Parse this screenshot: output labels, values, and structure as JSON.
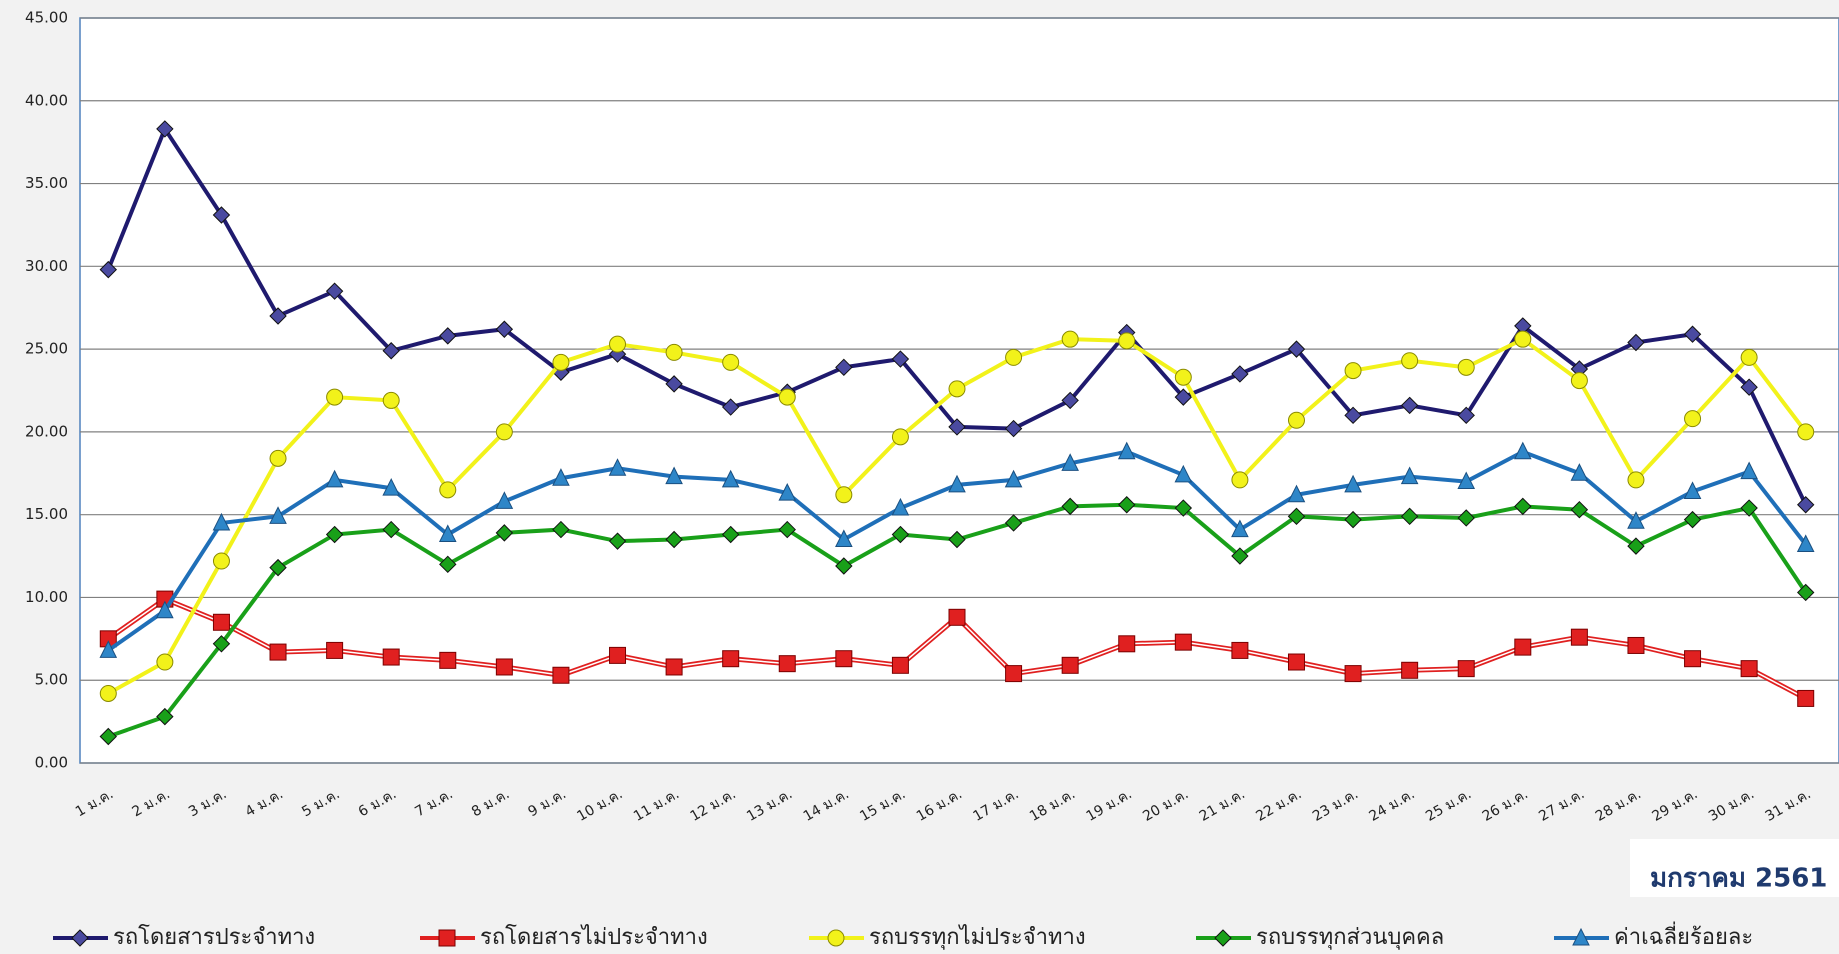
{
  "chart_data": {
    "type": "line",
    "categories": [
      "1 ม.ค.",
      "2 ม.ค.",
      "3 ม.ค.",
      "4 ม.ค.",
      "5 ม.ค.",
      "6 ม.ค.",
      "7 ม.ค.",
      "8 ม.ค.",
      "9 ม.ค.",
      "10 ม.ค.",
      "11 ม.ค.",
      "12 ม.ค.",
      "13 ม.ค.",
      "14 ม.ค.",
      "15 ม.ค.",
      "16 ม.ค.",
      "17 ม.ค.",
      "18 ม.ค.",
      "19 ม.ค.",
      "20 ม.ค.",
      "21 ม.ค.",
      "22 ม.ค.",
      "23 ม.ค.",
      "24 ม.ค.",
      "25 ม.ค.",
      "26 ม.ค.",
      "27 ม.ค.",
      "28 ม.ค.",
      "29 ม.ค.",
      "30 ม.ค.",
      "31 ม.ค."
    ],
    "series": [
      {
        "name": "รถโดยสารประจำทาง",
        "color": "#1f1a6e",
        "marker": "diamond",
        "values": [
          29.8,
          38.3,
          33.1,
          27.0,
          28.5,
          24.9,
          25.8,
          26.2,
          23.6,
          24.7,
          22.9,
          21.5,
          22.4,
          23.9,
          24.4,
          20.3,
          20.2,
          21.9,
          26.0,
          22.1,
          23.5,
          25.0,
          21.0,
          21.6,
          21.0,
          26.4,
          23.8,
          25.4,
          25.9,
          22.7,
          15.6
        ]
      },
      {
        "name": "รถโดยสารไม่ประจำทาง",
        "color": "#e02020",
        "marker": "square",
        "values": [
          7.5,
          9.9,
          8.5,
          6.7,
          6.8,
          6.4,
          6.2,
          5.8,
          5.3,
          6.5,
          5.8,
          6.3,
          6.0,
          6.3,
          5.9,
          8.8,
          5.4,
          5.9,
          7.2,
          7.3,
          6.8,
          6.1,
          5.4,
          5.6,
          5.7,
          7.0,
          7.6,
          7.1,
          6.3,
          5.7,
          3.9
        ]
      },
      {
        "name": "รถบรรทุกไม่ประจำทาง",
        "color": "#f2f21a",
        "marker": "circle",
        "values": [
          4.2,
          6.1,
          12.2,
          18.4,
          22.1,
          21.9,
          16.5,
          20.0,
          24.2,
          25.3,
          24.8,
          24.2,
          22.1,
          16.2,
          19.7,
          22.6,
          24.5,
          25.6,
          25.5,
          23.3,
          17.1,
          20.7,
          23.7,
          24.3,
          23.9,
          25.6,
          23.1,
          17.1,
          20.8,
          24.5,
          20.0
        ]
      },
      {
        "name": "รถบรรทุกส่วนบุคคล",
        "color": "#19a019",
        "marker": "diamond",
        "values": [
          1.6,
          2.8,
          7.2,
          11.8,
          13.8,
          14.1,
          12.0,
          13.9,
          14.1,
          13.4,
          13.5,
          13.8,
          14.1,
          11.9,
          13.8,
          13.5,
          14.5,
          15.5,
          15.6,
          15.4,
          12.5,
          14.9,
          14.7,
          14.9,
          14.8,
          15.5,
          15.3,
          13.1,
          14.7,
          15.4,
          10.3
        ]
      },
      {
        "name": "ค่าเฉลี่ยร้อยละ",
        "color": "#1f6fb8",
        "marker": "triangle",
        "values": [
          6.8,
          9.2,
          14.5,
          14.9,
          17.1,
          16.6,
          13.8,
          15.8,
          17.2,
          17.8,
          17.3,
          17.1,
          16.3,
          13.5,
          15.4,
          16.8,
          17.1,
          18.1,
          18.8,
          17.4,
          14.1,
          16.2,
          16.8,
          17.3,
          17.0,
          18.8,
          17.5,
          14.6,
          16.4,
          17.6,
          13.2
        ]
      }
    ],
    "ylim": [
      0,
      45
    ],
    "yticks": [
      {
        "value": 0,
        "label": "0.00"
      },
      {
        "value": 5,
        "label": "5.00"
      },
      {
        "value": 10,
        "label": "10.00"
      },
      {
        "value": 15,
        "label": "15.00"
      },
      {
        "value": 20,
        "label": "20.00"
      },
      {
        "value": 25,
        "label": "25.00"
      },
      {
        "value": 30,
        "label": "30.00"
      },
      {
        "value": 35,
        "label": "35.00"
      },
      {
        "value": 40,
        "label": "40.00"
      },
      {
        "value": 45,
        "label": "45.00"
      }
    ],
    "grid": true,
    "annotation": "มกราคม 2561",
    "legend": "bottom"
  }
}
